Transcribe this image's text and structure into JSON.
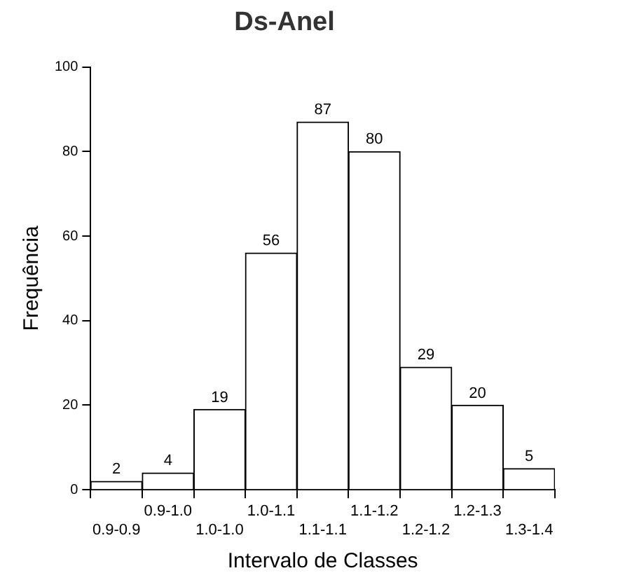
{
  "chart_data": {
    "type": "bar",
    "title": "Ds-Anel",
    "xlabel": "Intervalo de Classes",
    "ylabel": "Frequência",
    "categories": [
      "0.9-0.9",
      "0.9-1.0",
      "1.0-1.0",
      "1.0-1.1",
      "1.1-1.1",
      "1.1-1.2",
      "1.2-1.2",
      "1.2-1.3",
      "1.3-1.4"
    ],
    "values": [
      2,
      4,
      19,
      56,
      87,
      80,
      29,
      20,
      5
    ],
    "color": "#ffffff",
    "ylim": [
      0,
      100
    ],
    "yticks": [
      0,
      20,
      40,
      60,
      80,
      100
    ],
    "grid": false,
    "legend": false,
    "data_labels": true
  }
}
